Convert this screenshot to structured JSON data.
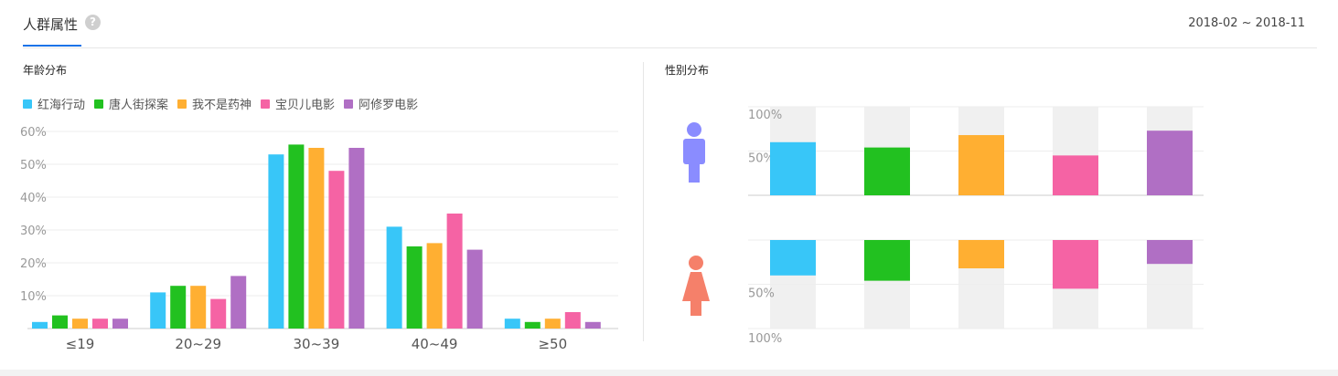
{
  "header": {
    "title": "人群属性",
    "help_icon": "question-circle-icon",
    "date_range": "2018-02 ~ 2018-11"
  },
  "age": {
    "title": "年龄分布"
  },
  "gender": {
    "title": "性别分布",
    "male_icon": "male-person-icon",
    "female_icon": "female-person-icon",
    "male_color": "#8a8cff",
    "female_color": "#f5806a"
  },
  "colors": [
    "#38c6f8",
    "#22c120",
    "#ffaf32",
    "#f563a4",
    "#b06fc4"
  ],
  "chart_data": [
    {
      "type": "bar",
      "name": "年龄分布",
      "categories": [
        "≤19",
        "20~29",
        "30~39",
        "40~49",
        "≥50"
      ],
      "series": [
        {
          "name": "红海行动",
          "values": [
            2,
            11,
            53,
            31,
            3
          ]
        },
        {
          "name": "唐人街探案",
          "values": [
            4,
            13,
            56,
            25,
            2
          ]
        },
        {
          "name": "我不是药神",
          "values": [
            3,
            13,
            55,
            26,
            3
          ]
        },
        {
          "name": "宝贝儿电影",
          "values": [
            3,
            9,
            48,
            35,
            5
          ]
        },
        {
          "name": "阿修罗电影",
          "values": [
            3,
            16,
            55,
            24,
            2
          ]
        }
      ],
      "ylim": [
        0,
        60
      ],
      "yticks": [
        "60%",
        "50%",
        "40%",
        "30%",
        "20%",
        "10%"
      ],
      "grid": true,
      "legend": "top-left"
    },
    {
      "type": "bar",
      "name": "性别分布",
      "categories": [
        "红海行动",
        "唐人街探案",
        "我不是药神",
        "宝贝儿电影",
        "阿修罗电影"
      ],
      "series": [
        {
          "name": "男",
          "values": [
            60,
            54,
            68,
            45,
            73
          ]
        },
        {
          "name": "女",
          "values": [
            40,
            46,
            32,
            55,
            27
          ]
        }
      ],
      "ylim": [
        0,
        100
      ],
      "yticks_top": [
        "100%",
        "50%"
      ],
      "yticks_bottom": [
        "50%",
        "100%"
      ]
    }
  ]
}
